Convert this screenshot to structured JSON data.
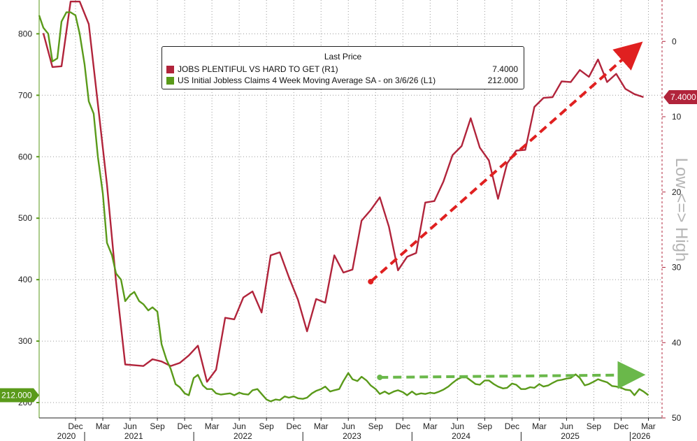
{
  "chart_data": {
    "type": "line",
    "legend": {
      "title": "Last Price",
      "placement": "top-center",
      "entries": [
        {
          "label": "JOBS PLENTIFUL VS HARD TO GET  (R1)",
          "value": "7.4000",
          "color": "#b1243b"
        },
        {
          "label": "US Initial Jobless Claims 4 Week Moving Average SA -  on 3/6/26  (L1)",
          "value": "212.000",
          "color": "#5a9a1a"
        }
      ]
    },
    "left_axis": {
      "ticks": [
        "200",
        "300",
        "400",
        "500",
        "600",
        "700",
        "800"
      ],
      "ylim": [
        175,
        855
      ]
    },
    "right_axis": {
      "ticks": [
        "0",
        "10",
        "20",
        "30",
        "40",
        "50"
      ],
      "ylim": [
        -5.5,
        50
      ],
      "inverted": true,
      "title": "Low <=> High"
    },
    "x_axis": {
      "month_ticks": [
        "Dec",
        "Mar",
        "Jun",
        "Sep",
        "Dec",
        "Mar",
        "Jun",
        "Sep",
        "Dec",
        "Mar",
        "Jun",
        "Sep",
        "Dec",
        "Mar",
        "Jun",
        "Sep",
        "Dec",
        "Mar",
        "Jun",
        "Sep",
        "Dec",
        "Mar"
      ],
      "years": [
        "2020",
        "2021",
        "2022",
        "2023",
        "2024",
        "2025",
        "2026"
      ]
    },
    "series": [
      {
        "name": "JOBS PLENTIFUL VS HARD TO GET",
        "axis": "right",
        "color": "#b1243b",
        "x": [
          "2020-08",
          "2020-09",
          "2020-10",
          "2020-11",
          "2020-12",
          "2021-01",
          "2021-02",
          "2021-03",
          "2021-04",
          "2021-05",
          "2021-06",
          "2021-07",
          "2021-08",
          "2021-09",
          "2021-10",
          "2021-11",
          "2021-12",
          "2022-01",
          "2022-02",
          "2022-03",
          "2022-04",
          "2022-05",
          "2022-06",
          "2022-07",
          "2022-08",
          "2022-09",
          "2022-10",
          "2022-11",
          "2022-12",
          "2023-01",
          "2023-02",
          "2023-03",
          "2023-04",
          "2023-05",
          "2023-06",
          "2023-07",
          "2023-08",
          "2023-09",
          "2023-10",
          "2023-11",
          "2023-12",
          "2024-01",
          "2024-02",
          "2024-03",
          "2024-04",
          "2024-05",
          "2024-06",
          "2024-07",
          "2024-08",
          "2024-09",
          "2024-10",
          "2024-11",
          "2024-12",
          "2025-01",
          "2025-02",
          "2025-03",
          "2025-04",
          "2025-05",
          "2025-06",
          "2025-07",
          "2025-08",
          "2025-09",
          "2025-10",
          "2025-11",
          "2025-12",
          "2026-01",
          "2026-02"
        ],
        "values": [
          -1.1,
          3.4,
          3.3,
          -5.3,
          -5.3,
          -2.3,
          8.3,
          19.0,
          31.9,
          42.9,
          43.0,
          43.1,
          42.2,
          42.5,
          43.1,
          42.7,
          41.7,
          40.4,
          45.2,
          43.6,
          36.7,
          36.9,
          34.0,
          33.2,
          36.0,
          28.4,
          28.0,
          31.3,
          34.3,
          38.5,
          34.2,
          34.7,
          28.4,
          30.7,
          30.3,
          23.8,
          22.4,
          20.7,
          24.6,
          30.4,
          28.6,
          28.1,
          21.4,
          21.2,
          18.6,
          15.1,
          13.9,
          10.2,
          14.1,
          15.8,
          20.9,
          16.2,
          14.5,
          14.4,
          8.7,
          7.5,
          7.4,
          5.3,
          5.4,
          3.8,
          4.7,
          2.4,
          5.4,
          4.3,
          6.3,
          7.0,
          7.4
        ]
      },
      {
        "name": "US Initial Jobless Claims 4 Week Moving Average SA",
        "axis": "left",
        "color": "#5a9a1a",
        "x": [
          "2020-08-01",
          "2020-08-15",
          "2020-09-01",
          "2020-09-15",
          "2020-10-01",
          "2020-10-15",
          "2020-11-01",
          "2020-11-15",
          "2020-12-01",
          "2020-12-15",
          "2021-01-01",
          "2021-01-15",
          "2021-02-01",
          "2021-02-15",
          "2021-03-01",
          "2021-03-15",
          "2021-04-01",
          "2021-04-15",
          "2021-05-01",
          "2021-05-15",
          "2021-06-01",
          "2021-06-15",
          "2021-07-01",
          "2021-07-15",
          "2021-08-01",
          "2021-08-15",
          "2021-09-01",
          "2021-09-15",
          "2021-10-01",
          "2021-10-15",
          "2021-11-01",
          "2021-11-15",
          "2021-12-01",
          "2021-12-15",
          "2022-01-01",
          "2022-01-15",
          "2022-02-01",
          "2022-02-15",
          "2022-03-01",
          "2022-03-15",
          "2022-04-01",
          "2022-04-15",
          "2022-05-01",
          "2022-05-15",
          "2022-06-01",
          "2022-06-15",
          "2022-07-01",
          "2022-07-15",
          "2022-08-01",
          "2022-08-15",
          "2022-09-01",
          "2022-09-15",
          "2022-10-01",
          "2022-10-15",
          "2022-11-01",
          "2022-11-15",
          "2022-12-01",
          "2022-12-15",
          "2023-01-01",
          "2023-01-15",
          "2023-02-01",
          "2023-02-15",
          "2023-03-01",
          "2023-03-15",
          "2023-04-01",
          "2023-04-15",
          "2023-05-01",
          "2023-05-15",
          "2023-06-01",
          "2023-06-15",
          "2023-07-01",
          "2023-07-15",
          "2023-08-01",
          "2023-08-15",
          "2023-09-01",
          "2023-09-15",
          "2023-10-01",
          "2023-10-15",
          "2023-11-01",
          "2023-11-15",
          "2023-12-01",
          "2023-12-15",
          "2024-01-01",
          "2024-01-15",
          "2024-02-01",
          "2024-02-15",
          "2024-03-01",
          "2024-03-15",
          "2024-04-01",
          "2024-04-15",
          "2024-05-01",
          "2024-05-15",
          "2024-06-01",
          "2024-06-15",
          "2024-07-01",
          "2024-07-15",
          "2024-08-01",
          "2024-08-15",
          "2024-09-01",
          "2024-09-15",
          "2024-10-01",
          "2024-10-15",
          "2024-11-01",
          "2024-11-15",
          "2024-12-01",
          "2024-12-15",
          "2025-01-01",
          "2025-01-15",
          "2025-02-01",
          "2025-02-15",
          "2025-03-01",
          "2025-03-15",
          "2025-04-01",
          "2025-04-15",
          "2025-05-01",
          "2025-05-15",
          "2025-06-01",
          "2025-06-15",
          "2025-07-01",
          "2025-07-15",
          "2025-08-01",
          "2025-08-15",
          "2025-09-01",
          "2025-09-15",
          "2025-10-01",
          "2025-10-15",
          "2025-11-01",
          "2025-11-15",
          "2025-12-01",
          "2025-12-15",
          "2026-01-01",
          "2026-01-15",
          "2026-02-01",
          "2026-02-15",
          "2026-03-01"
        ],
        "values": [
          830,
          810,
          800,
          755,
          760,
          820,
          835,
          835,
          830,
          800,
          750,
          690,
          670,
          600,
          540,
          460,
          440,
          410,
          400,
          365,
          375,
          380,
          365,
          360,
          350,
          355,
          348,
          295,
          270,
          255,
          230,
          225,
          215,
          212,
          240,
          245,
          228,
          222,
          222,
          215,
          213,
          214,
          215,
          212,
          216,
          214,
          213,
          220,
          222,
          214,
          205,
          202,
          205,
          204,
          210,
          208,
          210,
          207,
          206,
          208,
          215,
          219,
          222,
          226,
          218,
          220,
          222,
          235,
          248,
          238,
          235,
          242,
          236,
          228,
          222,
          214,
          218,
          214,
          218,
          220,
          217,
          212,
          218,
          213,
          215,
          214,
          216,
          215,
          218,
          221,
          226,
          232,
          238,
          241,
          241,
          236,
          230,
          229,
          236,
          236,
          230,
          226,
          223,
          224,
          231,
          229,
          222,
          222,
          225,
          224,
          230,
          226,
          228,
          232,
          236,
          237,
          239,
          240,
          246,
          240,
          228,
          230,
          234,
          238,
          235,
          233,
          227,
          226,
          224,
          221,
          220,
          212,
          222,
          218,
          212
        ]
      }
    ],
    "annotations": [
      {
        "type": "arrow",
        "style": "dashed",
        "color": "#e02020",
        "from": {
          "x": "2023-08",
          "y_right": 31.9
        },
        "to": {
          "x": "2026-01",
          "y_right": 1.0
        }
      },
      {
        "type": "arrow",
        "style": "dashed",
        "color": "#6ab84a",
        "from": {
          "x": "2023-09",
          "y_left": 241
        },
        "to": {
          "x": "2026-01",
          "y_left": 245
        }
      }
    ],
    "last_value_tags": [
      {
        "axis": "right",
        "text": "7.4000",
        "color": "#b1243b"
      },
      {
        "axis": "left",
        "text": "212.000",
        "color": "#5a9a1a"
      }
    ],
    "grid": "horizontal and vertical dotted"
  }
}
